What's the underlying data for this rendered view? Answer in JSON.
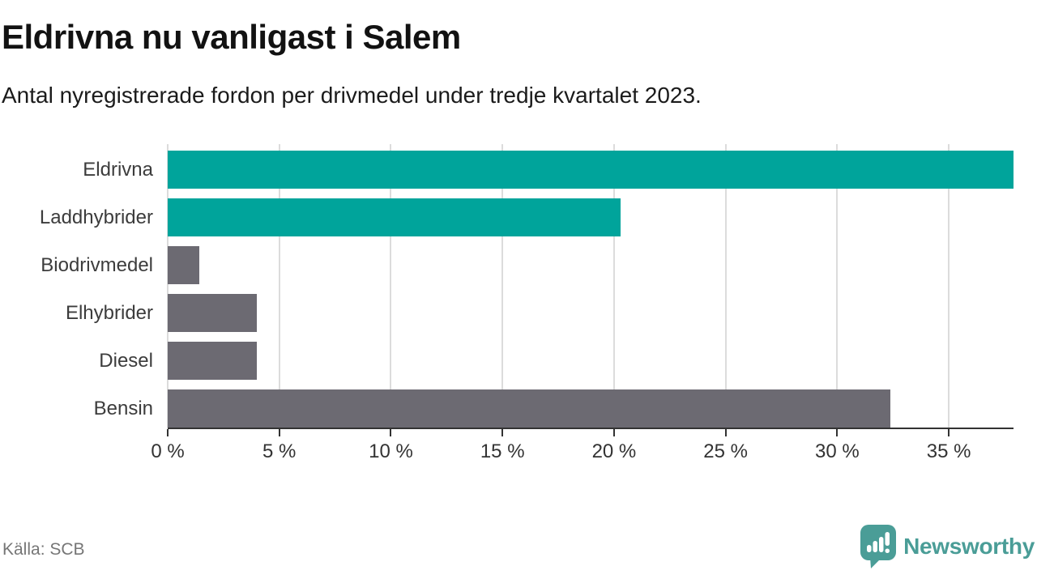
{
  "chart_data": {
    "type": "bar",
    "orientation": "horizontal",
    "title": "Eldrivna nu vanligast i Salem",
    "subtitle": "Antal nyregistrerade fordon per drivmedel under tredje kvartalet 2023.",
    "categories": [
      "Eldrivna",
      "Laddhybrider",
      "Biodrivmedel",
      "Elhybrider",
      "Diesel",
      "Bensin"
    ],
    "values": [
      37.9,
      20.3,
      1.4,
      4.0,
      4.0,
      32.4
    ],
    "unit": "%",
    "bar_colors": [
      "#00a49b",
      "#00a49b",
      "#6c6a72",
      "#6c6a72",
      "#6c6a72",
      "#6c6a72"
    ],
    "xlim": [
      0,
      37.9
    ],
    "x_ticks": [
      0,
      5,
      10,
      15,
      20,
      25,
      30,
      35
    ],
    "x_tick_labels": [
      "0 %",
      "5 %",
      "10 %",
      "15 %",
      "20 %",
      "25 %",
      "30 %",
      "35 %"
    ],
    "grid": "vertical",
    "legend": "none"
  },
  "footer": {
    "source": "Källa: SCB",
    "brand": "Newsworthy"
  },
  "icons": {
    "brand_icon": "newsworthy-speech-bubble-chart-icon"
  },
  "theme": {
    "teal": "#00a49b",
    "gray": "#6c6a72",
    "gridline": "#dcdcdc",
    "axis": "#333333",
    "label_text": "#3c3c3c",
    "muted_text": "#767676",
    "brand_teal": "#4a9d97"
  }
}
